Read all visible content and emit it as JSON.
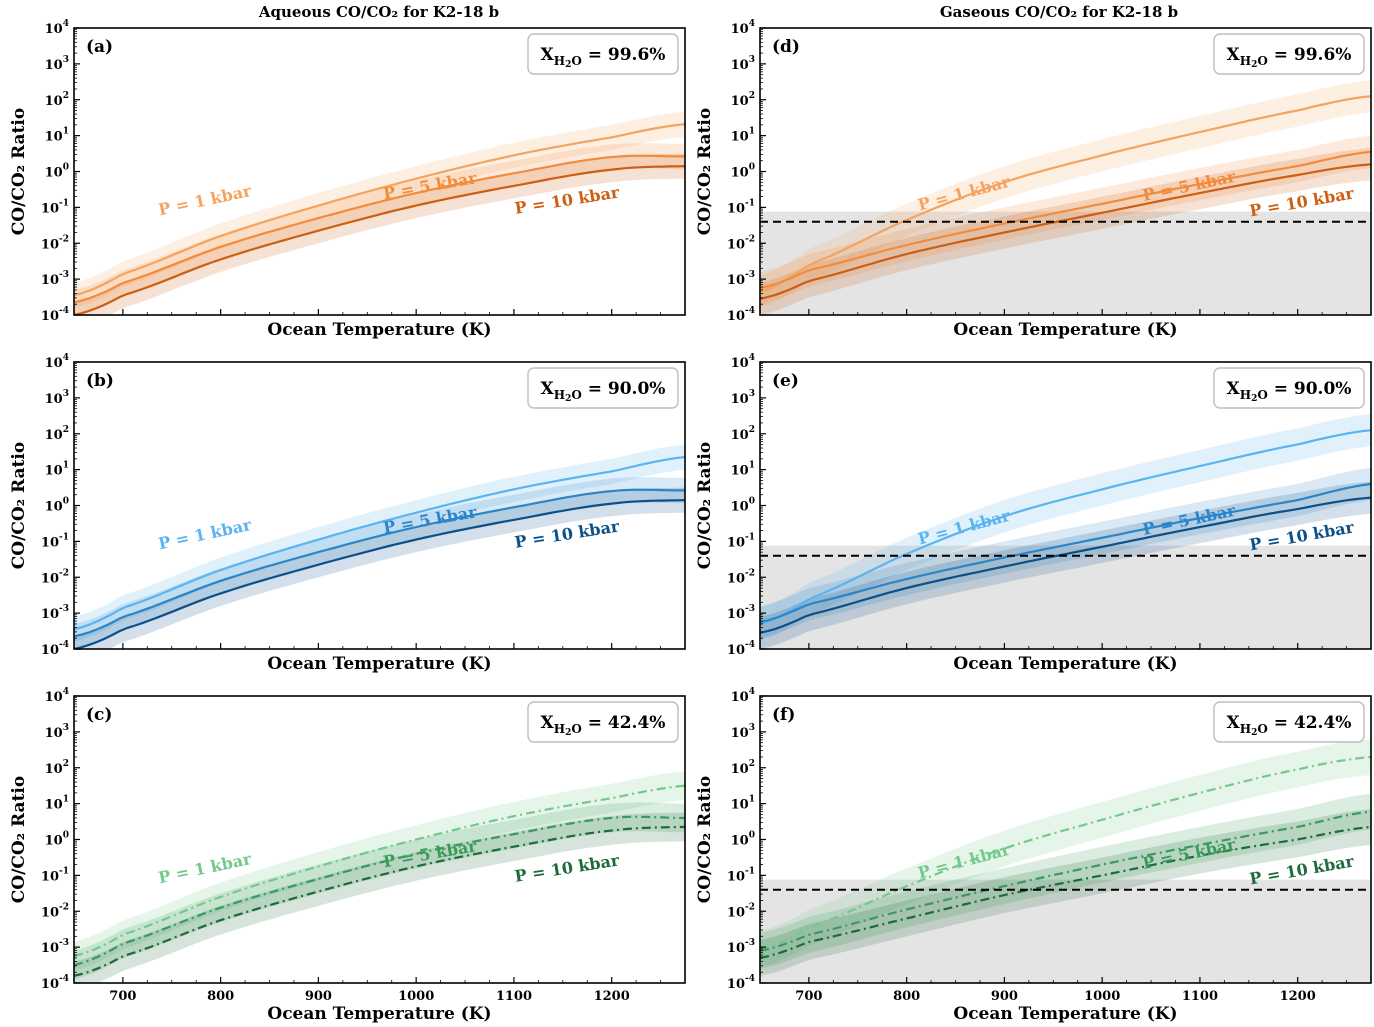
{
  "figure": {
    "col_titles": [
      "Aqueous CO/CO₂ for K2-18 b",
      "Gaseous CO/CO₂ for K2-18 b"
    ]
  },
  "chart_data": [
    {
      "panel": "(a)",
      "type": "line",
      "column": "aqueous",
      "row": 0,
      "xlabel": "Ocean Temperature (K)",
      "ylabel": "CO/CO₂ Ratio",
      "xlim": [
        650,
        1275
      ],
      "ylim_log10": [
        -4,
        4
      ],
      "yscale": "log",
      "xticks": [],
      "yticks_exponents": [
        -4,
        -3,
        -2,
        -1,
        0,
        1,
        2,
        3,
        4
      ],
      "water_fraction": "X_H2O = 99.6%",
      "water_fraction_parts": {
        "base": "X",
        "sub": "H",
        "sub2": "2",
        "sub3": "O",
        "value": " = 99.6%"
      },
      "series": [
        {
          "name": "P = 1 kbar",
          "color": "#f4a460",
          "style": "solid",
          "x": [
            650,
            700,
            800,
            900,
            1000,
            1100,
            1200,
            1275
          ],
          "log10_y": [
            -3.45,
            -2.85,
            -1.8,
            -0.95,
            -0.2,
            0.45,
            0.95,
            1.32
          ],
          "band": 0.35
        },
        {
          "name": "P = 5 kbar",
          "color": "#f28c3c",
          "style": "solid",
          "x": [
            650,
            700,
            800,
            900,
            1000,
            1100,
            1200,
            1275
          ],
          "log10_y": [
            -3.65,
            -3.1,
            -2.1,
            -1.3,
            -0.6,
            -0.05,
            0.4,
            0.42
          ],
          "band": 0.35
        },
        {
          "name": "P = 10 kbar",
          "color": "#cc5f12",
          "style": "solid",
          "x": [
            650,
            700,
            800,
            900,
            1000,
            1100,
            1200,
            1275
          ],
          "log10_y": [
            -4.0,
            -3.45,
            -2.45,
            -1.65,
            -0.95,
            -0.4,
            0.05,
            0.15
          ],
          "band": 0.35
        }
      ],
      "annotations": [
        {
          "text": "P = 1 kbar",
          "x": 785,
          "log10_y": -0.95,
          "angle": -12,
          "color": "#f4a460"
        },
        {
          "text": "P = 5 kbar",
          "x": 1015,
          "log10_y": -0.55,
          "angle": -10,
          "color": "#f28c3c"
        },
        {
          "text": "P = 10 kbar",
          "x": 1155,
          "log10_y": -0.95,
          "angle": -9,
          "color": "#cc5f12"
        }
      ]
    },
    {
      "panel": "(b)",
      "type": "line",
      "column": "aqueous",
      "row": 1,
      "xlabel": "Ocean Temperature (K)",
      "ylabel": "CO/CO₂ Ratio",
      "xlim": [
        650,
        1275
      ],
      "ylim_log10": [
        -4,
        4
      ],
      "yscale": "log",
      "xticks": [],
      "yticks_exponents": [
        -4,
        -3,
        -2,
        -1,
        0,
        1,
        2,
        3,
        4
      ],
      "water_fraction": "X_H2O = 90.0%",
      "water_fraction_parts": {
        "base": "X",
        "sub": "H",
        "sub2": "2",
        "sub3": "O",
        "value": " = 90.0%"
      },
      "series": [
        {
          "name": "P = 1 kbar",
          "color": "#5ab4f0",
          "style": "solid",
          "x": [
            650,
            700,
            800,
            900,
            1000,
            1100,
            1200,
            1275
          ],
          "log10_y": [
            -3.45,
            -2.85,
            -1.8,
            -0.95,
            -0.2,
            0.45,
            0.95,
            1.35
          ],
          "band": 0.35
        },
        {
          "name": "P = 5 kbar",
          "color": "#2a85c9",
          "style": "solid",
          "x": [
            650,
            700,
            800,
            900,
            1000,
            1100,
            1200,
            1275
          ],
          "log10_y": [
            -3.65,
            -3.1,
            -2.1,
            -1.3,
            -0.6,
            -0.05,
            0.4,
            0.42
          ],
          "band": 0.35
        },
        {
          "name": "P = 10 kbar",
          "color": "#0d5088",
          "style": "solid",
          "x": [
            650,
            700,
            800,
            900,
            1000,
            1100,
            1200,
            1275
          ],
          "log10_y": [
            -4.0,
            -3.45,
            -2.45,
            -1.65,
            -0.95,
            -0.4,
            0.05,
            0.15
          ],
          "band": 0.35
        }
      ],
      "annotations": [
        {
          "text": "P = 1 kbar",
          "x": 785,
          "log10_y": -0.95,
          "angle": -12,
          "color": "#5ab4f0"
        },
        {
          "text": "P = 5 kbar",
          "x": 1015,
          "log10_y": -0.55,
          "angle": -10,
          "color": "#2a85c9"
        },
        {
          "text": "P = 10 kbar",
          "x": 1155,
          "log10_y": -0.95,
          "angle": -9,
          "color": "#0d5088"
        }
      ]
    },
    {
      "panel": "(c)",
      "type": "line",
      "column": "aqueous",
      "row": 2,
      "xlabel": "Ocean Temperature (K)",
      "ylabel": "CO/CO₂ Ratio",
      "xlim": [
        650,
        1275
      ],
      "ylim_log10": [
        -4,
        4
      ],
      "yscale": "log",
      "xticks": [
        700,
        800,
        900,
        1000,
        1100,
        1200
      ],
      "yticks_exponents": [
        -4,
        -3,
        -2,
        -1,
        0,
        1,
        2,
        3,
        4
      ],
      "water_fraction": "X_H2O = 42.4%",
      "water_fraction_parts": {
        "base": "X",
        "sub": "H",
        "sub2": "2",
        "sub3": "O",
        "value": " = 42.4%"
      },
      "series": [
        {
          "name": "P = 1 kbar",
          "color": "#74c98a",
          "style": "dashdot",
          "x": [
            650,
            700,
            800,
            900,
            1000,
            1100,
            1200,
            1275
          ],
          "log10_y": [
            -3.25,
            -2.65,
            -1.6,
            -0.75,
            0.0,
            0.65,
            1.15,
            1.5
          ],
          "band": 0.4
        },
        {
          "name": "P = 5 kbar",
          "color": "#3a9a5a",
          "style": "dashdot",
          "x": [
            650,
            700,
            800,
            900,
            1000,
            1100,
            1200,
            1275
          ],
          "log10_y": [
            -3.5,
            -2.9,
            -1.9,
            -1.1,
            -0.4,
            0.15,
            0.6,
            0.6
          ],
          "band": 0.4
        },
        {
          "name": "P = 10 kbar",
          "color": "#1e6b3a",
          "style": "dashdot",
          "x": [
            650,
            700,
            800,
            900,
            1000,
            1100,
            1200,
            1275
          ],
          "log10_y": [
            -3.8,
            -3.25,
            -2.25,
            -1.45,
            -0.75,
            -0.2,
            0.25,
            0.35
          ],
          "band": 0.4
        }
      ],
      "annotations": [
        {
          "text": "P = 1 kbar",
          "x": 785,
          "log10_y": -0.95,
          "angle": -12,
          "color": "#74c98a"
        },
        {
          "text": "P = 5 kbar",
          "x": 1015,
          "log10_y": -0.55,
          "angle": -10,
          "color": "#3a9a5a"
        },
        {
          "text": "P = 10 kbar",
          "x": 1155,
          "log10_y": -0.95,
          "angle": -9,
          "color": "#1e6b3a"
        }
      ]
    },
    {
      "panel": "(d)",
      "type": "line",
      "column": "gaseous",
      "row": 0,
      "xlabel": "Ocean Temperature (K)",
      "ylabel": "CO/CO₂ Ratio",
      "xlim": [
        650,
        1275
      ],
      "ylim_log10": [
        -4,
        4
      ],
      "yscale": "log",
      "xticks": [],
      "yticks_exponents": [
        -4,
        -3,
        -2,
        -1,
        0,
        1,
        2,
        3,
        4
      ],
      "water_fraction": "X_H2O = 99.6%",
      "water_fraction_parts": {
        "base": "X",
        "sub": "H",
        "sub2": "2",
        "sub3": "O",
        "value": " = 99.6%"
      },
      "threshold_log10": -1.4,
      "shade_log10": [
        -4,
        -1.12
      ],
      "series": [
        {
          "name": "P = 1 kbar",
          "color": "#f4a460",
          "style": "solid",
          "x": [
            650,
            700,
            800,
            900,
            1000,
            1100,
            1200,
            1275
          ],
          "log10_y": [
            -3.35,
            -2.6,
            -1.35,
            -0.3,
            0.45,
            1.1,
            1.7,
            2.1
          ],
          "band": 0.45
        },
        {
          "name": "P = 5 kbar",
          "color": "#f28c3c",
          "style": "solid",
          "x": [
            650,
            700,
            800,
            900,
            1000,
            1100,
            1200,
            1275
          ],
          "log10_y": [
            -3.25,
            -2.75,
            -2.05,
            -1.45,
            -0.9,
            -0.35,
            0.15,
            0.55
          ],
          "band": 0.45
        },
        {
          "name": "P = 10 kbar",
          "color": "#cc5f12",
          "style": "solid",
          "x": [
            650,
            700,
            800,
            900,
            1000,
            1100,
            1200,
            1275
          ],
          "log10_y": [
            -3.55,
            -3.05,
            -2.3,
            -1.7,
            -1.15,
            -0.6,
            -0.1,
            0.2
          ],
          "band": 0.45
        }
      ],
      "annotations": [
        {
          "text": "P = 1 kbar",
          "x": 860,
          "log10_y": -0.75,
          "angle": -15,
          "color": "#f4a460"
        },
        {
          "text": "P = 5 kbar",
          "x": 1090,
          "log10_y": -0.55,
          "angle": -12,
          "color": "#f28c3c"
        },
        {
          "text": "P = 10 kbar",
          "x": 1205,
          "log10_y": -1.0,
          "angle": -10,
          "color": "#cc5f12"
        }
      ]
    },
    {
      "panel": "(e)",
      "type": "line",
      "column": "gaseous",
      "row": 1,
      "xlabel": "Ocean Temperature (K)",
      "ylabel": "CO/CO₂ Ratio",
      "xlim": [
        650,
        1275
      ],
      "ylim_log10": [
        -4,
        4
      ],
      "yscale": "log",
      "xticks": [],
      "yticks_exponents": [
        -4,
        -3,
        -2,
        -1,
        0,
        1,
        2,
        3,
        4
      ],
      "water_fraction": "X_H2O = 90.0%",
      "water_fraction_parts": {
        "base": "X",
        "sub": "H",
        "sub2": "2",
        "sub3": "O",
        "value": " = 90.0%"
      },
      "threshold_log10": -1.4,
      "shade_log10": [
        -4,
        -1.12
      ],
      "series": [
        {
          "name": "P = 1 kbar",
          "color": "#5ab4f0",
          "style": "solid",
          "x": [
            650,
            700,
            800,
            900,
            1000,
            1100,
            1200,
            1275
          ],
          "log10_y": [
            -3.3,
            -2.6,
            -1.35,
            -0.3,
            0.45,
            1.1,
            1.7,
            2.1
          ],
          "band": 0.45
        },
        {
          "name": "P = 5 kbar",
          "color": "#2a85c9",
          "style": "solid",
          "x": [
            650,
            700,
            800,
            900,
            1000,
            1100,
            1200,
            1275
          ],
          "log10_y": [
            -3.25,
            -2.75,
            -2.05,
            -1.45,
            -0.9,
            -0.35,
            0.15,
            0.6
          ],
          "band": 0.45
        },
        {
          "name": "P = 10 kbar",
          "color": "#0d5088",
          "style": "solid",
          "x": [
            650,
            700,
            800,
            900,
            1000,
            1100,
            1200,
            1275
          ],
          "log10_y": [
            -3.55,
            -3.05,
            -2.3,
            -1.7,
            -1.15,
            -0.6,
            -0.1,
            0.22
          ],
          "band": 0.45
        }
      ],
      "annotations": [
        {
          "text": "P = 1 kbar",
          "x": 860,
          "log10_y": -0.75,
          "angle": -15,
          "color": "#5ab4f0"
        },
        {
          "text": "P = 5 kbar",
          "x": 1090,
          "log10_y": -0.55,
          "angle": -12,
          "color": "#2a85c9"
        },
        {
          "text": "P = 10 kbar",
          "x": 1205,
          "log10_y": -1.0,
          "angle": -10,
          "color": "#0d5088"
        }
      ]
    },
    {
      "panel": "(f)",
      "type": "line",
      "column": "gaseous",
      "row": 2,
      "xlabel": "Ocean Temperature (K)",
      "ylabel": "CO/CO₂ Ratio",
      "xlim": [
        650,
        1275
      ],
      "ylim_log10": [
        -4,
        4
      ],
      "yscale": "log",
      "xticks": [
        700,
        800,
        900,
        1000,
        1100,
        1200
      ],
      "yticks_exponents": [
        -4,
        -3,
        -2,
        -1,
        0,
        1,
        2,
        3,
        4
      ],
      "water_fraction": "X_H2O = 42.4%",
      "water_fraction_parts": {
        "base": "X",
        "sub": "H",
        "sub2": "2",
        "sub3": "O",
        "value": " = 42.4%"
      },
      "threshold_log10": -1.4,
      "shade_log10": [
        -4,
        -1.12
      ],
      "series": [
        {
          "name": "P = 1 kbar",
          "color": "#74c98a",
          "style": "dashdot",
          "x": [
            650,
            700,
            800,
            900,
            1000,
            1100,
            1200,
            1275
          ],
          "log10_y": [
            -3.05,
            -2.45,
            -1.3,
            -0.25,
            0.55,
            1.3,
            1.95,
            2.3
          ],
          "band": 0.5
        },
        {
          "name": "P = 5 kbar",
          "color": "#3a9a5a",
          "style": "dashdot",
          "x": [
            650,
            700,
            800,
            900,
            1000,
            1100,
            1200,
            1275
          ],
          "log10_y": [
            -3.1,
            -2.65,
            -1.95,
            -1.3,
            -0.7,
            -0.15,
            0.35,
            0.78
          ],
          "band": 0.5
        },
        {
          "name": "P = 10 kbar",
          "color": "#1e6b3a",
          "style": "dashdot",
          "x": [
            650,
            700,
            800,
            900,
            1000,
            1100,
            1200,
            1275
          ],
          "log10_y": [
            -3.3,
            -2.85,
            -2.2,
            -1.55,
            -1.0,
            -0.45,
            0.0,
            0.35
          ],
          "band": 0.5
        }
      ],
      "annotations": [
        {
          "text": "P = 1 kbar",
          "x": 860,
          "log10_y": -0.75,
          "angle": -15,
          "color": "#74c98a"
        },
        {
          "text": "P = 5 kbar",
          "x": 1090,
          "log10_y": -0.55,
          "angle": -12,
          "color": "#3a9a5a"
        },
        {
          "text": "P = 10 kbar",
          "x": 1205,
          "log10_y": -1.0,
          "angle": -10,
          "color": "#1e6b3a"
        }
      ]
    }
  ]
}
